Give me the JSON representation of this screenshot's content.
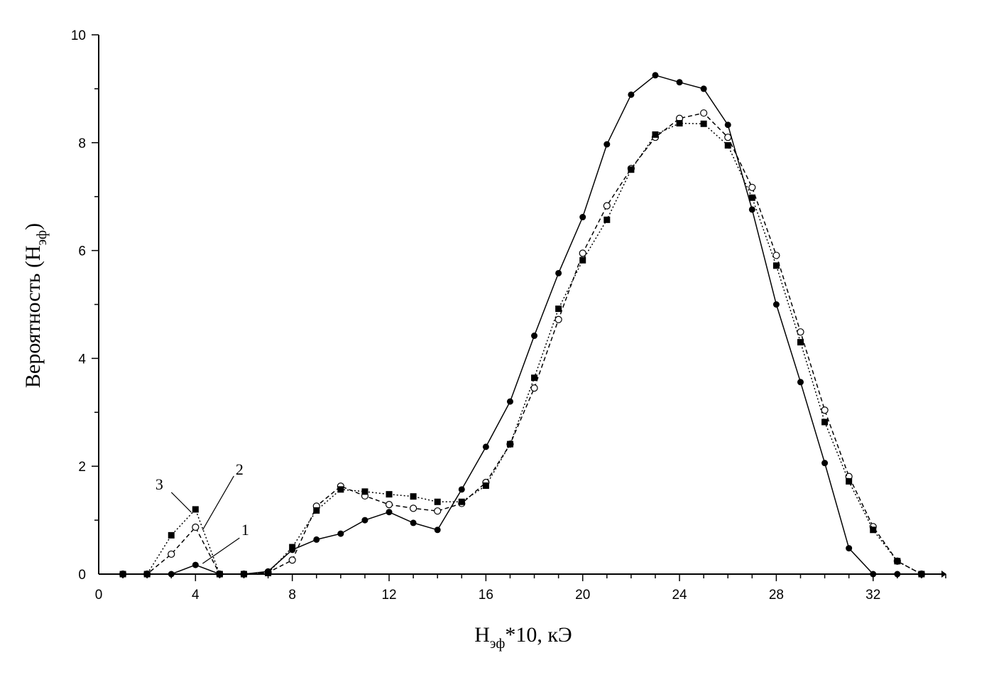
{
  "chart_data": {
    "type": "line",
    "xlabel": {
      "main": "H",
      "sub": "эф",
      "rest": "*10, кЭ"
    },
    "ylabel": {
      "main": "Вероятность (H",
      "sub": "эф",
      "rest": ")"
    },
    "xlim": [
      0,
      35
    ],
    "ylim": [
      0,
      10
    ],
    "xticks": [
      0,
      4,
      8,
      12,
      16,
      20,
      24,
      28,
      32
    ],
    "yticks": [
      0,
      2,
      4,
      6,
      8,
      10
    ],
    "x": [
      1,
      2,
      3,
      4,
      5,
      6,
      7,
      8,
      9,
      10,
      11,
      12,
      13,
      14,
      15,
      16,
      17,
      18,
      19,
      20,
      21,
      22,
      23,
      24,
      25,
      26,
      27,
      28,
      29,
      30,
      31,
      32,
      33,
      34
    ],
    "series": [
      {
        "name": "1",
        "line": "solid",
        "marker": "filled-circle",
        "values": [
          0,
          0,
          0,
          0.17,
          0,
          0,
          0.05,
          0.45,
          0.64,
          0.75,
          1.0,
          1.15,
          0.95,
          0.82,
          1.57,
          2.36,
          3.2,
          4.42,
          5.58,
          6.62,
          7.97,
          8.89,
          9.25,
          9.12,
          9.0,
          8.33,
          6.76,
          5.0,
          3.56,
          2.06,
          0.48,
          0,
          0,
          0
        ]
      },
      {
        "name": "2",
        "line": "dashed",
        "marker": "open-circle",
        "values": [
          0,
          0,
          0.37,
          0.87,
          0,
          0,
          0.03,
          0.26,
          1.26,
          1.63,
          1.45,
          1.29,
          1.22,
          1.17,
          1.31,
          1.7,
          2.41,
          3.45,
          4.72,
          5.95,
          6.83,
          7.52,
          8.1,
          8.45,
          8.55,
          8.1,
          7.17,
          5.91,
          4.49,
          3.04,
          1.81,
          0.88,
          0.24,
          0
        ]
      },
      {
        "name": "3",
        "line": "dotted",
        "marker": "filled-square",
        "values": [
          0,
          0,
          0.72,
          1.2,
          0,
          0,
          0.02,
          0.5,
          1.18,
          1.57,
          1.53,
          1.48,
          1.44,
          1.34,
          1.34,
          1.64,
          2.41,
          3.64,
          4.92,
          5.82,
          6.57,
          7.5,
          8.15,
          8.36,
          8.35,
          7.95,
          6.98,
          5.72,
          4.3,
          2.82,
          1.72,
          0.82,
          0.24,
          0
        ]
      }
    ],
    "annotations": [
      {
        "text": "1",
        "series": 0,
        "target_x": 4
      },
      {
        "text": "2",
        "series": 1,
        "target_x": 4
      },
      {
        "text": "3",
        "series": 2,
        "target_x": 4
      }
    ],
    "grid": false,
    "legend": "none"
  }
}
